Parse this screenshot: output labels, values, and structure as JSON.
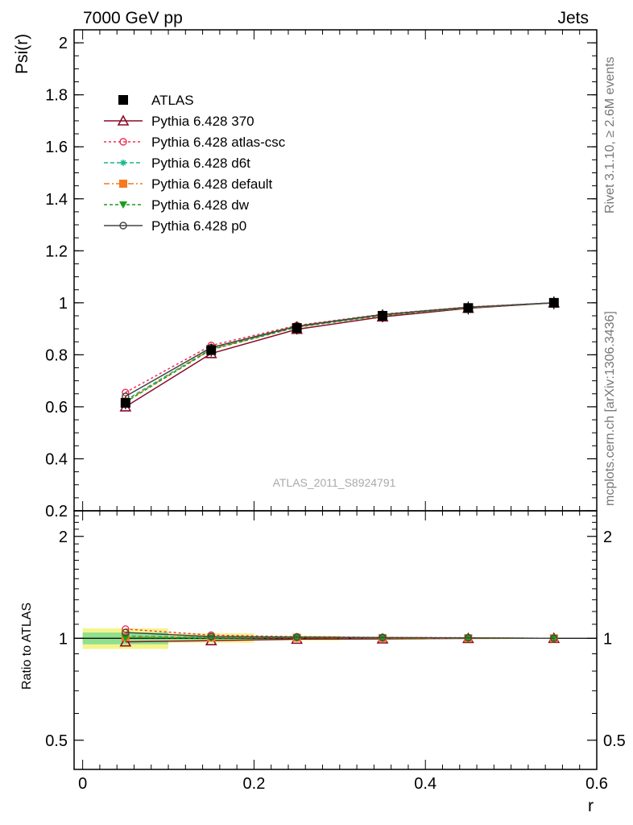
{
  "header": {
    "left": "7000 GeV pp",
    "right": "Jets"
  },
  "side": {
    "rivet": "Rivet 3.1.10, ≥ 2.6M events",
    "mcplots": "mcplots.cern.ch [arXiv:1306.3436]"
  },
  "analysis_label": "ATLAS_2011_S8924791",
  "chart_data": [
    {
      "type": "line",
      "panel": "main",
      "ylabel": "Psi(r)",
      "xlabel": "r",
      "xlim": [
        -0.01,
        0.6
      ],
      "ylim": [
        0.2,
        2.05
      ],
      "x_ticks": [
        "0",
        "0.2",
        "0.4",
        "0.6"
      ],
      "y_ticks": [
        "0.2",
        "0.4",
        "0.6",
        "0.8",
        "1",
        "1.2",
        "1.4",
        "1.6",
        "1.8",
        "2"
      ],
      "legend_position": "top-left",
      "x": [
        0.05,
        0.15,
        0.25,
        0.35,
        0.45,
        0.55
      ],
      "series": [
        {
          "name": "ATLAS",
          "color": "#000000",
          "marker": "square",
          "dash": "none",
          "values": [
            0.615,
            0.818,
            0.903,
            0.95,
            0.98,
            1.0
          ]
        },
        {
          "name": "Pythia 6.428 370",
          "color": "#8b0a2a",
          "marker": "triangle-open",
          "dash": "solid",
          "values": [
            0.6,
            0.805,
            0.898,
            0.946,
            0.979,
            1.0
          ]
        },
        {
          "name": "Pythia 6.428 atlas-csc",
          "color": "#ef2f55",
          "marker": "circle-open",
          "dash": "3,3",
          "values": [
            0.655,
            0.836,
            0.913,
            0.956,
            0.984,
            1.0
          ]
        },
        {
          "name": "Pythia 6.428 d6t",
          "color": "#12b889",
          "marker": "star",
          "dash": "5,3",
          "values": [
            0.625,
            0.823,
            0.908,
            0.953,
            0.982,
            1.0
          ]
        },
        {
          "name": "Pythia 6.428 default",
          "color": "#f47a20",
          "marker": "square",
          "dash": "7,3,2,3",
          "values": [
            0.62,
            0.822,
            0.907,
            0.952,
            0.981,
            1.0
          ]
        },
        {
          "name": "Pythia 6.428 dw",
          "color": "#1a9e1a",
          "marker": "triangle-down",
          "dash": "4,3",
          "values": [
            0.618,
            0.82,
            0.906,
            0.951,
            0.981,
            1.0
          ]
        },
        {
          "name": "Pythia 6.428 p0",
          "color": "#444444",
          "marker": "circle-open",
          "dash": "solid",
          "values": [
            0.64,
            0.828,
            0.91,
            0.955,
            0.983,
            1.0
          ]
        }
      ]
    },
    {
      "type": "line",
      "panel": "ratio",
      "ylabel": "Ratio to ATLAS",
      "xlabel": "r",
      "xlim": [
        -0.01,
        0.6
      ],
      "ylim": [
        0.41,
        2.38
      ],
      "y_scale": "log",
      "y_ticks_left": [
        "0.5",
        "1",
        "2"
      ],
      "y_ticks_right": [
        "0.5",
        "1",
        "2"
      ],
      "x": [
        0.05,
        0.15,
        0.25,
        0.35,
        0.45,
        0.55
      ],
      "bands": [
        {
          "name": "ATLAS uncertainty (outer)",
          "color": "#f4f48c",
          "x_ranges": [
            [
              0,
              0.1
            ],
            [
              0.1,
              0.2
            ],
            [
              0.2,
              0.3
            ],
            [
              0.3,
              0.4
            ],
            [
              0.4,
              0.5
            ],
            [
              0.5,
              0.6
            ]
          ],
          "low": [
            0.93,
            0.97,
            0.985,
            0.99,
            0.994,
            0.998
          ],
          "high": [
            1.07,
            1.035,
            1.018,
            1.01,
            1.006,
            1.002
          ]
        },
        {
          "name": "ATLAS uncertainty (inner)",
          "color": "#8fe08f",
          "x_ranges": [
            [
              0,
              0.1
            ],
            [
              0.1,
              0.2
            ],
            [
              0.2,
              0.3
            ],
            [
              0.3,
              0.4
            ],
            [
              0.4,
              0.5
            ],
            [
              0.5,
              0.6
            ]
          ],
          "low": [
            0.96,
            0.985,
            0.993,
            0.996,
            0.998,
            0.999
          ],
          "high": [
            1.04,
            1.015,
            1.008,
            1.004,
            1.002,
            1.001
          ]
        }
      ],
      "series": [
        {
          "name": "Pythia 6.428 370",
          "color": "#8b0a2a",
          "marker": "triangle-open",
          "dash": "solid",
          "values": [
            0.976,
            0.984,
            0.994,
            0.996,
            0.999,
            1.0
          ]
        },
        {
          "name": "Pythia 6.428 atlas-csc",
          "color": "#ef2f55",
          "marker": "circle-open",
          "dash": "3,3",
          "values": [
            1.065,
            1.022,
            1.011,
            1.006,
            1.004,
            1.0
          ]
        },
        {
          "name": "Pythia 6.428 d6t",
          "color": "#12b889",
          "marker": "star",
          "dash": "5,3",
          "values": [
            1.016,
            1.006,
            1.006,
            1.003,
            1.002,
            1.0
          ]
        },
        {
          "name": "Pythia 6.428 default",
          "color": "#f47a20",
          "marker": "square",
          "dash": "7,3,2,3",
          "values": [
            1.008,
            1.005,
            1.004,
            1.002,
            1.001,
            1.0
          ]
        },
        {
          "name": "Pythia 6.428 dw",
          "color": "#1a9e1a",
          "marker": "triangle-down",
          "dash": "4,3",
          "values": [
            1.005,
            1.002,
            1.003,
            1.001,
            1.001,
            1.0
          ]
        },
        {
          "name": "Pythia 6.428 p0",
          "color": "#444444",
          "marker": "circle-open",
          "dash": "solid",
          "values": [
            1.04,
            1.012,
            1.008,
            1.005,
            1.003,
            1.0
          ]
        }
      ]
    }
  ]
}
